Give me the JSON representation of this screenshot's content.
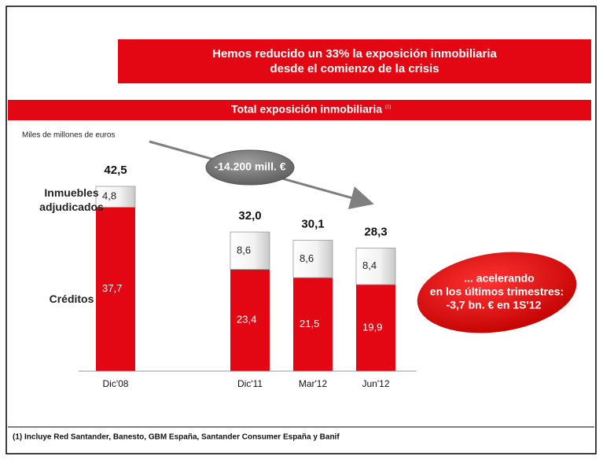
{
  "header": {
    "title_lines": [
      "Hemos reducido un 33% la exposición inmobiliaria",
      "desde el comienzo de la crisis"
    ]
  },
  "chart_data": {
    "type": "bar",
    "stacked": true,
    "title": "Total exposición inmobiliaria",
    "title_note": "(1)",
    "unit_label": "Miles de millones de euros",
    "categories": [
      "Dic'08",
      "Dic'11",
      "Mar'12",
      "Jun'12"
    ],
    "series": [
      {
        "name": "Créditos",
        "color": "#e30613",
        "values": [
          37.7,
          23.4,
          21.5,
          19.9
        ],
        "value_labels": [
          "37,7",
          "23,4",
          "21,5",
          "19,9"
        ]
      },
      {
        "name": "Inmuebles adjudicados",
        "color": "#ffffff",
        "values": [
          4.8,
          8.6,
          8.6,
          8.4
        ],
        "value_labels": [
          "4,8",
          "8,6",
          "8,6",
          "8,4"
        ]
      }
    ],
    "totals": [
      42.5,
      32.0,
      30.1,
      28.3
    ],
    "total_labels": [
      "42,5",
      "32,0",
      "30,1",
      "28,3"
    ],
    "arrow_label": "-14.200 mill. €",
    "callout_lines": [
      "... acelerando",
      "en los últimos trimestres:",
      "-3,7 bn. € en 1S'12"
    ]
  },
  "footnote": "(1) Incluye  Red Santander, Banesto, GBM España,  Santander Consumer España  y  Banif"
}
